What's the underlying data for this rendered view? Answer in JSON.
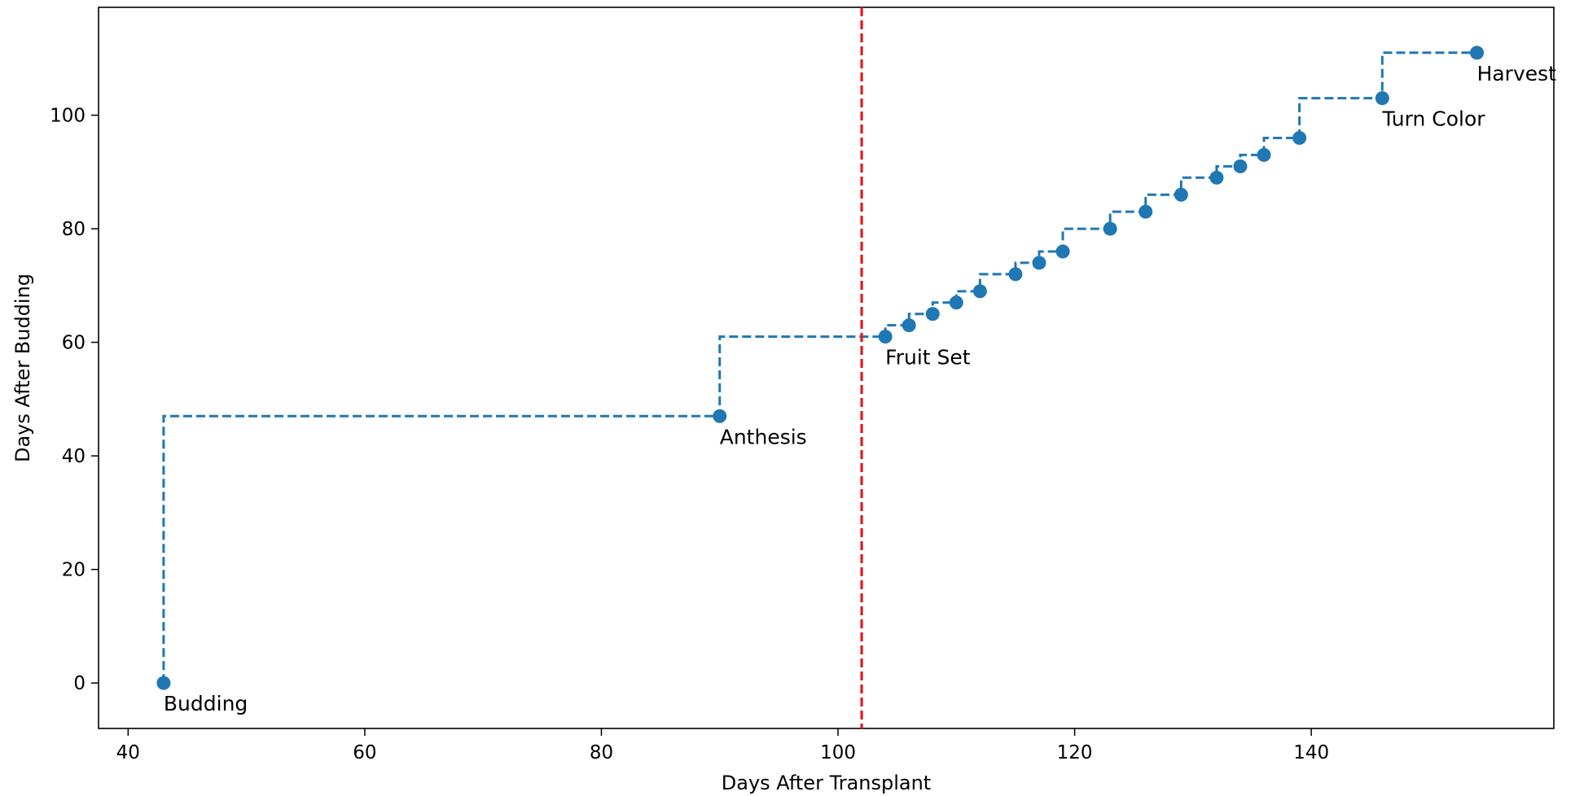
{
  "chart_data": {
    "type": "line",
    "title": "",
    "xlabel": "Days After Transplant",
    "ylabel": "Days After Budding",
    "xlim": [
      37.5,
      160.5
    ],
    "ylim": [
      -8,
      119
    ],
    "grid": false,
    "step_style": "post",
    "x_ticks": [
      40,
      60,
      80,
      100,
      120,
      140
    ],
    "y_ticks": [
      0,
      20,
      40,
      60,
      80,
      100
    ],
    "series": [
      {
        "line_style": "dashed",
        "marker": "circle",
        "color": "#1f77b4",
        "points": [
          {
            "x": 43,
            "y": 0
          },
          {
            "x": 90,
            "y": 47
          },
          {
            "x": 104,
            "y": 61
          },
          {
            "x": 106,
            "y": 63
          },
          {
            "x": 108,
            "y": 65
          },
          {
            "x": 110,
            "y": 67
          },
          {
            "x": 112,
            "y": 69
          },
          {
            "x": 115,
            "y": 72
          },
          {
            "x": 117,
            "y": 74
          },
          {
            "x": 119,
            "y": 76
          },
          {
            "x": 123,
            "y": 80
          },
          {
            "x": 126,
            "y": 83
          },
          {
            "x": 129,
            "y": 86
          },
          {
            "x": 132,
            "y": 89
          },
          {
            "x": 134,
            "y": 91
          },
          {
            "x": 136,
            "y": 93
          },
          {
            "x": 139,
            "y": 96
          },
          {
            "x": 146,
            "y": 103
          },
          {
            "x": 154,
            "y": 111
          }
        ]
      }
    ],
    "reference_line": {
      "x": 102,
      "orientation": "vertical",
      "style": "dashed",
      "color": "#e31a1c"
    },
    "annotations": [
      {
        "text": "Budding",
        "x": 43,
        "y": 0
      },
      {
        "text": "Anthesis",
        "x": 90,
        "y": 47
      },
      {
        "text": "Fruit Set",
        "x": 104,
        "y": 61
      },
      {
        "text": "Turn Color",
        "x": 146,
        "y": 103
      },
      {
        "text": "Harvest",
        "x": 154,
        "y": 111
      }
    ]
  }
}
